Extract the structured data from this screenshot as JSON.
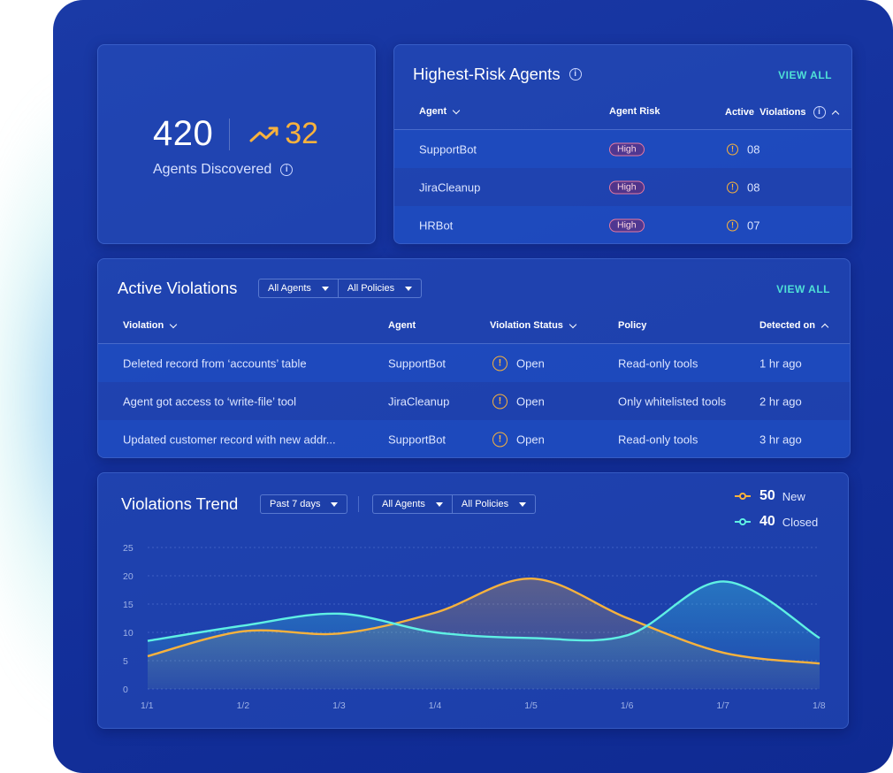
{
  "stat": {
    "value": "420",
    "delta": "32",
    "label": "Agents Discovered"
  },
  "agents_card": {
    "title": "Highest-Risk Agents",
    "view_all": "VIEW ALL",
    "columns": [
      "Agent",
      "Agent Risk",
      "Active  Violations"
    ],
    "rows": [
      {
        "agent": "SupportBot",
        "risk": "High",
        "violations": "08"
      },
      {
        "agent": "JiraCleanup",
        "risk": "High",
        "violations": "08"
      },
      {
        "agent": "HRBot",
        "risk": "High",
        "violations": "07"
      }
    ]
  },
  "violations_card": {
    "title": "Active Violations",
    "filters": [
      "All Agents",
      "All Policies"
    ],
    "view_all": "VIEW ALL",
    "columns": [
      "Violation",
      "Agent",
      "Violation Status",
      "Policy",
      "Detected on"
    ],
    "rows": [
      {
        "violation": "Deleted record from ‘accounts’ table",
        "agent": "SupportBot",
        "status": "Open",
        "policy": "Read-only tools",
        "detected": "1 hr ago"
      },
      {
        "violation": "Agent got access to ‘write-file’ tool",
        "agent": "JiraCleanup",
        "status": "Open",
        "policy": "Only whitelisted tools",
        "detected": "2 hr ago"
      },
      {
        "violation": "Updated customer record with new addr...",
        "agent": "SupportBot",
        "status": "Open",
        "policy": "Read-only tools",
        "detected": "3 hr ago"
      }
    ]
  },
  "trend_card": {
    "title": "Violations Trend",
    "period": "Past 7 days",
    "filters": [
      "All Agents",
      "All Policies"
    ],
    "legend": [
      {
        "value": "50",
        "label": "New",
        "color": "#f8b23d"
      },
      {
        "value": "40",
        "label": "Closed",
        "color": "#5ff0e4"
      }
    ]
  },
  "chart_data": {
    "type": "area",
    "title": "Violations Trend",
    "x": [
      "1/1",
      "1/2",
      "1/3",
      "1/4",
      "1/5",
      "1/6",
      "1/7",
      "1/8"
    ],
    "y_ticks": [
      0,
      5,
      10,
      15,
      20,
      25
    ],
    "ylim": [
      0,
      25
    ],
    "series": [
      {
        "name": "New",
        "color": "#f8b23d",
        "values": [
          5.8,
          10.2,
          9.8,
          13.5,
          19.5,
          12.5,
          6.4,
          4.5
        ]
      },
      {
        "name": "Closed",
        "color": "#5ff0e4",
        "values": [
          8.5,
          11.2,
          13.3,
          10.0,
          9.0,
          9.5,
          19.0,
          9.0
        ]
      }
    ]
  }
}
